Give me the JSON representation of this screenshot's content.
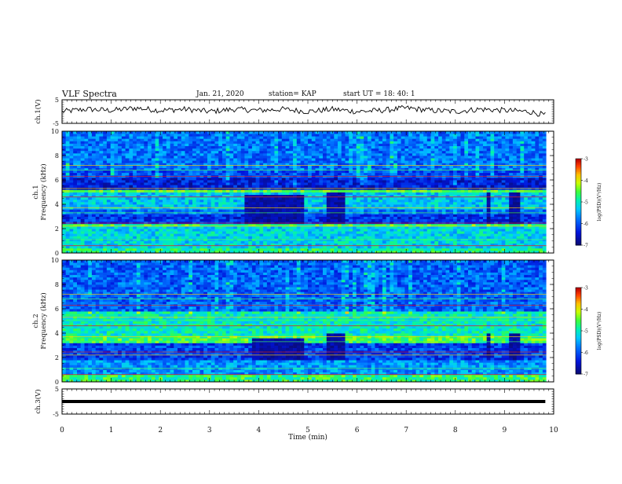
{
  "header": {
    "title": "VLF Spectra",
    "date": "Jan. 21, 2020",
    "station": "station= KAP",
    "start": "start UT =  18: 40: 1"
  },
  "chart_data": [
    {
      "type": "line",
      "title": "",
      "ylabel": "ch.1(V)",
      "ylim": [
        -5,
        5
      ],
      "yticks": [
        "5",
        "-5"
      ],
      "x": [
        0.0,
        0.5,
        1.0,
        1.5,
        2.0,
        2.5,
        3.0,
        3.5,
        4.0,
        4.5,
        5.0,
        5.5,
        6.0,
        6.5,
        7.0,
        7.5,
        8.0,
        8.5,
        9.0,
        9.5,
        9.83
      ],
      "series": [
        {
          "values": [
            0.0,
            1.0,
            0.5,
            1.5,
            0.5,
            1.0,
            0.0,
            1.0,
            0.5,
            1.0,
            0.0,
            1.0,
            0.0,
            0.5,
            1.5,
            0.5,
            0.0,
            1.0,
            0.5,
            0.0,
            -1.5
          ]
        }
      ]
    },
    {
      "type": "heatmap",
      "title": "",
      "ylabel": "ch.1 Frequency (kHz)",
      "ylim": [
        0,
        10
      ],
      "yticks": [
        "0",
        "2",
        "4",
        "6",
        "8",
        "10"
      ],
      "colorbar": {
        "label": "log(PSD)(V²/Hz)",
        "ticks": [
          "-3",
          "-4",
          "-5",
          "-6",
          "-7"
        ],
        "range": [
          -7,
          -3
        ]
      },
      "bands": [
        {
          "f": [
            0,
            0.4
          ],
          "level": -4.8
        },
        {
          "f": [
            0.4,
            2.1
          ],
          "level": -5.2
        },
        {
          "f": [
            2.1,
            2.4
          ],
          "level": -4.6
        },
        {
          "f": [
            2.4,
            3.2
          ],
          "level": -6.2
        },
        {
          "f": [
            3.2,
            3.6
          ],
          "level": -5.8
        },
        {
          "f": [
            3.6,
            5.0
          ],
          "level": -5.3
        },
        {
          "f": [
            5.0,
            5.3
          ],
          "level": -4.4
        },
        {
          "f": [
            5.3,
            6.2
          ],
          "level": -6.4
        },
        {
          "f": [
            6.2,
            6.8
          ],
          "level": -6.0
        },
        {
          "f": [
            6.8,
            10.0
          ],
          "level": -5.8
        }
      ],
      "dark_patches": [
        {
          "t": [
            3.75,
            4.9
          ],
          "f": [
            2.4,
            4.8
          ]
        },
        {
          "t": [
            5.4,
            5.75
          ],
          "f": [
            2.4,
            5.0
          ]
        },
        {
          "t": [
            8.6,
            8.75
          ],
          "f": [
            2.4,
            5.0
          ]
        },
        {
          "t": [
            9.1,
            9.35
          ],
          "f": [
            2.4,
            5.0
          ]
        }
      ]
    },
    {
      "type": "heatmap",
      "title": "",
      "ylabel": "ch.2 Frequency (kHz)",
      "ylim": [
        0,
        10
      ],
      "yticks": [
        "0",
        "2",
        "4",
        "6",
        "8",
        "10"
      ],
      "colorbar": {
        "label": "log(PSD)(V²/Hz)",
        "ticks": [
          "-3",
          "-4",
          "-5",
          "-6",
          "-7"
        ],
        "range": [
          -7,
          -3
        ]
      },
      "bands": [
        {
          "f": [
            0,
            0.5
          ],
          "level": -4.7
        },
        {
          "f": [
            0.5,
            1.8
          ],
          "level": -5.6
        },
        {
          "f": [
            1.8,
            3.2
          ],
          "level": -6.1
        },
        {
          "f": [
            3.2,
            3.8
          ],
          "level": -4.6
        },
        {
          "f": [
            3.8,
            5.8
          ],
          "level": -5.0
        },
        {
          "f": [
            5.8,
            10.0
          ],
          "level": -5.9
        }
      ],
      "dark_patches": [
        {
          "t": [
            3.85,
            4.9
          ],
          "f": [
            1.8,
            3.6
          ]
        },
        {
          "t": [
            5.4,
            5.75
          ],
          "f": [
            1.8,
            4.0
          ]
        },
        {
          "t": [
            8.6,
            8.75
          ],
          "f": [
            1.8,
            4.0
          ]
        },
        {
          "t": [
            9.1,
            9.35
          ],
          "f": [
            1.8,
            4.0
          ]
        }
      ]
    },
    {
      "type": "line",
      "title": "",
      "ylabel": "ch.3(V)",
      "xlabel": "Time (min)",
      "xlim": [
        0,
        10
      ],
      "xticks": [
        "0",
        "1",
        "2",
        "3",
        "4",
        "5",
        "6",
        "7",
        "8",
        "9",
        "10"
      ],
      "ylim": [
        -5,
        5
      ],
      "yticks": [
        "5",
        "-5"
      ],
      "x": [
        0,
        9.83
      ],
      "series": [
        {
          "values": [
            0,
            0
          ]
        }
      ]
    }
  ]
}
